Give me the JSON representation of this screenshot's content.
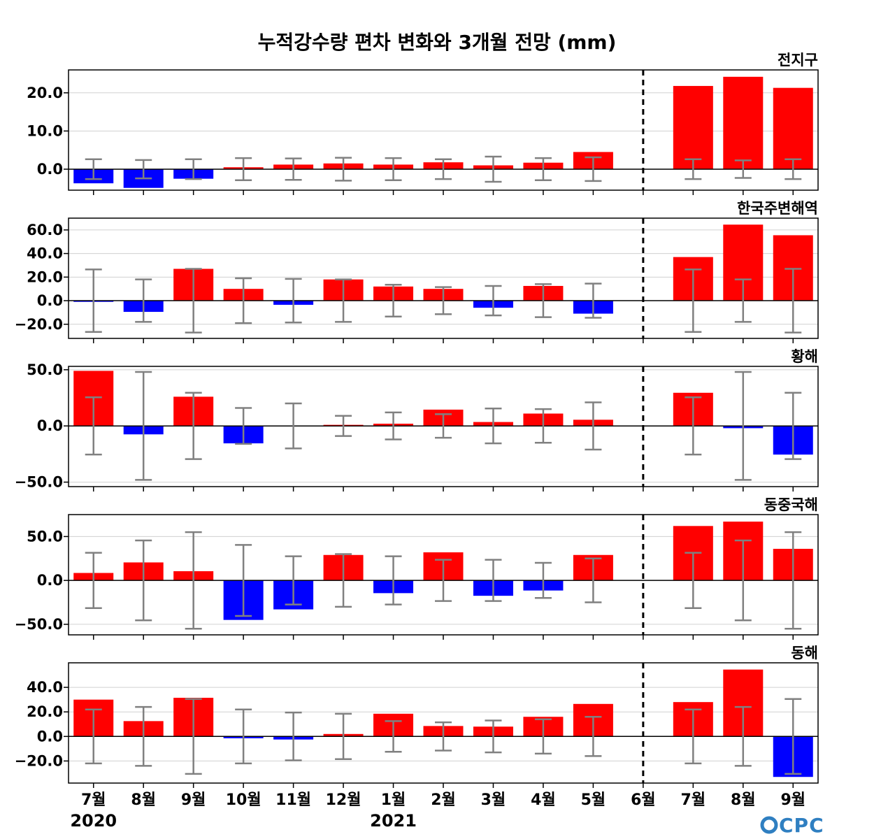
{
  "title": "누적강수량 편차 변화와 3개월 전망 (mm)",
  "logo": "CPC",
  "colors": {
    "positive": "#ff0000",
    "negative": "#0000ff",
    "error_bar": "#808080",
    "grid": "#d0d0d0",
    "divider": "#000000"
  },
  "chart_data": {
    "type": "bar",
    "categories": [
      "7월",
      "8월",
      "9월",
      "10월",
      "11월",
      "12월",
      "1월",
      "2월",
      "3월",
      "4월",
      "5월",
      "6월",
      "7월",
      "8월",
      "9월"
    ],
    "year_labels": [
      {
        "index": 0,
        "text": "2020"
      },
      {
        "index": 6,
        "text": "2021"
      }
    ],
    "forecast_divider_category": "6월",
    "grid": true,
    "panels": [
      {
        "name": "전지구",
        "ylim": [
          -5.5,
          26
        ],
        "yticks": [
          0,
          10,
          20
        ],
        "ytick_labels": [
          "0.0",
          "10.0",
          "20.0"
        ],
        "values": [
          -3.7,
          -4.9,
          -2.5,
          0.5,
          1.2,
          1.5,
          1.2,
          1.8,
          1.0,
          1.7,
          4.5,
          0,
          21.8,
          24.2,
          21.3
        ],
        "error": [
          2.6,
          2.4,
          2.6,
          2.9,
          2.8,
          3.0,
          2.9,
          2.6,
          3.3,
          2.9,
          3.1,
          null,
          2.6,
          2.3,
          2.6
        ]
      },
      {
        "name": "한국주변해역",
        "ylim": [
          -32,
          70
        ],
        "yticks": [
          -20,
          0,
          20,
          40,
          60
        ],
        "ytick_labels": [
          "−20.0",
          "0.0",
          "20.0",
          "40.0",
          "60.0"
        ],
        "values": [
          -1.0,
          -9.5,
          27.0,
          10.0,
          -3.5,
          18.0,
          12.0,
          10.0,
          -6.0,
          12.5,
          -11.0,
          0,
          37.0,
          64.5,
          55.5
        ],
        "error": [
          26.5,
          18.0,
          27.0,
          19.0,
          18.5,
          18.0,
          13.5,
          11.5,
          12.5,
          14.0,
          14.5,
          null,
          26.5,
          18.0,
          27.0
        ]
      },
      {
        "name": "황해",
        "ylim": [
          -54,
          53
        ],
        "yticks": [
          -50,
          0,
          50
        ],
        "ytick_labels": [
          "−50.0",
          "0.0",
          "50.0"
        ],
        "values": [
          49.0,
          -7.5,
          26.0,
          -15.5,
          0,
          0.5,
          2.0,
          14.5,
          3.5,
          11.0,
          5.5,
          0,
          29.5,
          -2.0,
          -25.5
        ],
        "error": [
          25.5,
          48.0,
          29.5,
          16.0,
          20.0,
          9.0,
          12.0,
          10.5,
          15.5,
          15.0,
          21.0,
          null,
          25.5,
          48.0,
          29.5
        ]
      },
      {
        "name": "동중국해",
        "ylim": [
          -62,
          75
        ],
        "yticks": [
          -50,
          0,
          50
        ],
        "ytick_labels": [
          "−50.0",
          "0.0",
          "50.0"
        ],
        "values": [
          8.5,
          20.5,
          10.5,
          -45.0,
          -33.0,
          29.0,
          -14.5,
          32.0,
          -17.5,
          -11.5,
          29.0,
          0,
          62.0,
          67.0,
          36.0
        ],
        "error": [
          31.5,
          45.5,
          55.0,
          40.5,
          27.5,
          30.0,
          27.5,
          23.5,
          23.5,
          20.0,
          25.0,
          null,
          31.5,
          45.5,
          55.0
        ]
      },
      {
        "name": "동해",
        "ylim": [
          -38,
          60
        ],
        "yticks": [
          -20,
          0,
          20,
          40
        ],
        "ytick_labels": [
          "−20.0",
          "0.0",
          "20.0",
          "40.0"
        ],
        "values": [
          30.0,
          12.5,
          31.5,
          -1.5,
          -2.5,
          2.0,
          18.5,
          8.5,
          8.0,
          16.0,
          26.5,
          0,
          28.0,
          54.5,
          -33.0
        ],
        "error": [
          22.0,
          24.0,
          30.5,
          22.0,
          19.5,
          18.5,
          12.5,
          11.5,
          13.0,
          14.0,
          16.0,
          null,
          22.0,
          24.0,
          30.5
        ]
      }
    ]
  }
}
